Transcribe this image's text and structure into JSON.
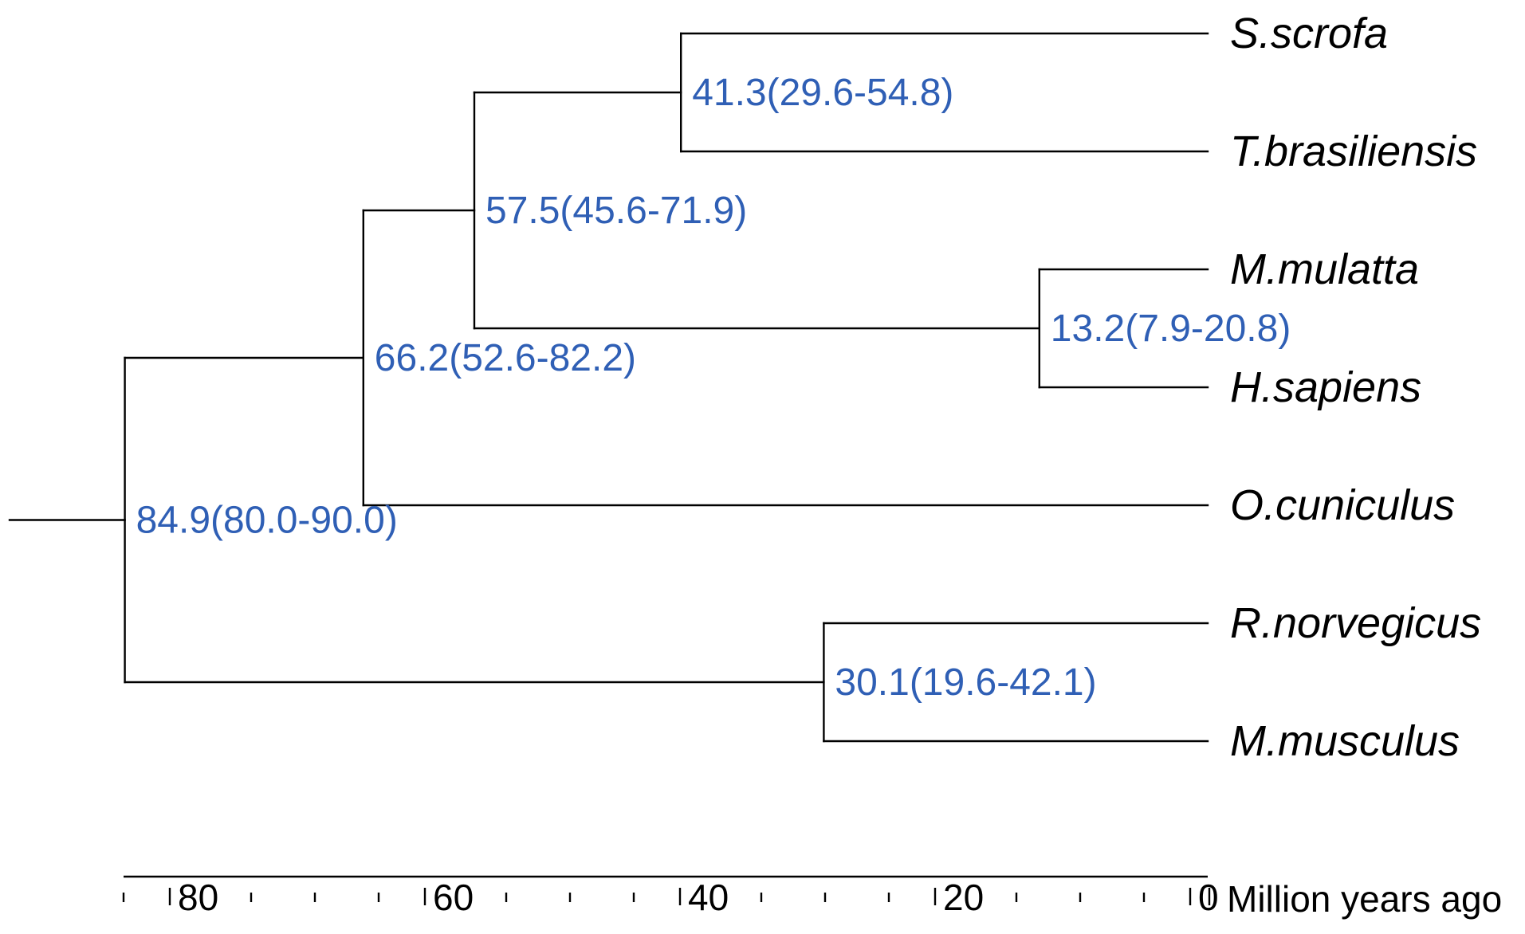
{
  "colors": {
    "branch": "#000000",
    "node_label": "#2f5fb5",
    "taxon_label": "#000000"
  },
  "chart_data": {
    "type": "phylogenetic-tree",
    "time_unit": "Million years ago",
    "axis": {
      "label": "Million years ago",
      "range": [
        85,
        0
      ],
      "major_ticks": [
        80,
        60,
        40,
        20,
        0
      ],
      "minor_step": 5,
      "tick_labels": [
        "80",
        "60",
        "40",
        "20",
        "0"
      ]
    },
    "root_age": 84.9,
    "taxa": [
      "S.scrofa",
      "T.brasiliensis",
      "M.mulatta",
      "H.sapiens",
      "O.cuniculus",
      "R.norvegicus",
      "M.musculus"
    ],
    "nodes": [
      {
        "id": "n41",
        "age": 41.3,
        "label": "41.3(29.6-54.8)",
        "children": [
          "S.scrofa",
          "T.brasiliensis"
        ]
      },
      {
        "id": "n13",
        "age": 13.2,
        "label": "13.2(7.9-20.8)",
        "children": [
          "M.mulatta",
          "H.sapiens"
        ]
      },
      {
        "id": "n57",
        "age": 57.5,
        "label": "57.5(45.6-71.9)",
        "children": [
          "n41",
          "n13"
        ]
      },
      {
        "id": "n66",
        "age": 66.2,
        "label": "66.2(52.6-82.2)",
        "children": [
          "n57",
          "O.cuniculus"
        ]
      },
      {
        "id": "n30",
        "age": 30.1,
        "label": "30.1(19.6-42.1)",
        "children": [
          "R.norvegicus",
          "M.musculus"
        ]
      },
      {
        "id": "n85",
        "age": 84.9,
        "label": "84.9(80.0-90.0)",
        "children": [
          "n66",
          "n30"
        ]
      }
    ]
  }
}
